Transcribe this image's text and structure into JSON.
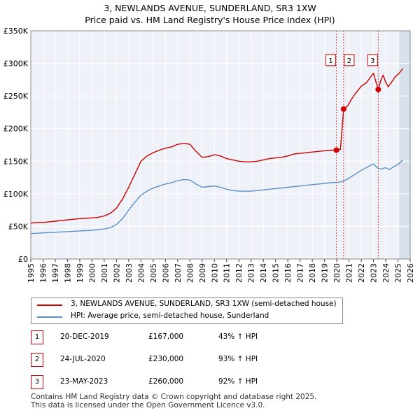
{
  "title": "3, NEWLANDS AVENUE, SUNDERLAND, SR3 1XW",
  "subtitle": "Price paid vs. HM Land Registry's House Price Index (HPI)",
  "legend": {
    "property": "3, NEWLANDS AVENUE, SUNDERLAND, SR3 1XW (semi-detached house)",
    "hpi": "HPI: Average price, semi-detached house, Sunderland"
  },
  "sales": [
    {
      "num": "1",
      "date": "20-DEC-2019",
      "price": "£167,000",
      "hpi": "43% ↑ HPI"
    },
    {
      "num": "2",
      "date": "24-JUL-2020",
      "price": "£230,000",
      "hpi": "93% ↑ HPI"
    },
    {
      "num": "3",
      "date": "23-MAY-2023",
      "price": "£260,000",
      "hpi": "92% ↑ HPI"
    }
  ],
  "footer": {
    "line1": "Contains HM Land Registry data © Crown copyright and database right 2025.",
    "line2": "This data is licensed under the Open Government Licence v3.0."
  },
  "colors": {
    "property": "#cc0000",
    "hpi": "#5b8ec9",
    "grid": "#dde3ec",
    "plot_bg": "#eef2f8",
    "future_shade": "#d8e0ec"
  },
  "chart_data": {
    "type": "line",
    "title": "3, NEWLANDS AVENUE, SUNDERLAND, SR3 1XW",
    "subtitle": "Price paid vs. HM Land Registry's House Price Index (HPI)",
    "xlim": [
      1995,
      2026
    ],
    "ylim": [
      0,
      350000
    ],
    "x_ticks": [
      1995,
      1996,
      1997,
      1998,
      1999,
      2000,
      2001,
      2002,
      2003,
      2004,
      2005,
      2006,
      2007,
      2008,
      2009,
      2010,
      2011,
      2012,
      2013,
      2014,
      2015,
      2016,
      2017,
      2018,
      2019,
      2020,
      2021,
      2022,
      2023,
      2024,
      2025,
      2026
    ],
    "y_ticks": [
      0,
      50000,
      100000,
      150000,
      200000,
      250000,
      300000,
      350000
    ],
    "y_tick_labels": [
      "£0",
      "£50K",
      "£100K",
      "£150K",
      "£200K",
      "£250K",
      "£300K",
      "£350K"
    ],
    "future_shade_from": 2025.1,
    "series": [
      {
        "name": "3, NEWLANDS AVENUE, SUNDERLAND, SR3 1XW (semi-detached house)",
        "x": [
          1995.0,
          1995.5,
          1996.0,
          1996.5,
          1997.0,
          1997.5,
          1998.0,
          1998.5,
          1999.0,
          1999.5,
          2000.0,
          2000.5,
          2001.0,
          2001.5,
          2002.0,
          2002.5,
          2003.0,
          2003.5,
          2004.0,
          2004.5,
          2005.0,
          2005.5,
          2006.0,
          2006.5,
          2007.0,
          2007.5,
          2008.0,
          2008.5,
          2009.0,
          2009.5,
          2010.0,
          2010.5,
          2011.0,
          2011.5,
          2012.0,
          2012.5,
          2013.0,
          2013.5,
          2014.0,
          2014.5,
          2015.0,
          2015.5,
          2016.0,
          2016.5,
          2017.0,
          2017.5,
          2018.0,
          2018.5,
          2019.0,
          2019.5,
          2019.97,
          2020.3,
          2020.56,
          2020.9,
          2021.3,
          2021.7,
          2022.0,
          2022.4,
          2022.8,
          2023.0,
          2023.2,
          2023.39,
          2023.6,
          2023.8,
          2024.0,
          2024.2,
          2024.5,
          2024.8,
          2025.1,
          2025.4
        ],
        "values": [
          55000,
          56000,
          56000,
          57000,
          58000,
          59000,
          60000,
          61000,
          62000,
          62500,
          63000,
          64000,
          66000,
          70000,
          78000,
          92000,
          110000,
          130000,
          150000,
          158000,
          163000,
          167000,
          170000,
          172000,
          176000,
          177000,
          176000,
          165000,
          156000,
          157000,
          160000,
          158000,
          154000,
          152000,
          150000,
          149000,
          149000,
          150000,
          152000,
          154000,
          155000,
          156000,
          158000,
          161000,
          162000,
          163000,
          164000,
          165000,
          166000,
          167000,
          167000,
          168000,
          230000,
          235000,
          248000,
          258000,
          265000,
          270000,
          280000,
          285000,
          272000,
          260000,
          274000,
          282000,
          271000,
          264000,
          272000,
          280000,
          285000,
          292000
        ],
        "color": "#cc0000"
      },
      {
        "name": "HPI: Average price, semi-detached house, Sunderland",
        "x": [
          1995.0,
          1995.5,
          1996.0,
          1996.5,
          1997.0,
          1997.5,
          1998.0,
          1998.5,
          1999.0,
          1999.5,
          2000.0,
          2000.5,
          2001.0,
          2001.5,
          2002.0,
          2002.5,
          2003.0,
          2003.5,
          2004.0,
          2004.5,
          2005.0,
          2005.5,
          2006.0,
          2006.5,
          2007.0,
          2007.5,
          2008.0,
          2008.5,
          2009.0,
          2009.5,
          2010.0,
          2010.5,
          2011.0,
          2011.5,
          2012.0,
          2012.5,
          2013.0,
          2013.5,
          2014.0,
          2014.5,
          2015.0,
          2015.5,
          2016.0,
          2016.5,
          2017.0,
          2017.5,
          2018.0,
          2018.5,
          2019.0,
          2019.5,
          2020.0,
          2020.5,
          2021.0,
          2021.5,
          2022.0,
          2022.5,
          2023.0,
          2023.3,
          2023.6,
          2024.0,
          2024.3,
          2024.6,
          2025.0,
          2025.4
        ],
        "values": [
          39000,
          39500,
          40000,
          40500,
          41000,
          41500,
          42000,
          42500,
          43000,
          43500,
          44000,
          45000,
          46000,
          48000,
          53000,
          62000,
          75000,
          87000,
          98000,
          104000,
          109000,
          112000,
          115000,
          117000,
          120000,
          122000,
          121000,
          115000,
          110000,
          111000,
          112000,
          110000,
          107000,
          105000,
          104000,
          104000,
          104000,
          105000,
          106000,
          107000,
          108000,
          109000,
          110000,
          111000,
          112000,
          113000,
          114000,
          115000,
          116000,
          117000,
          117500,
          119000,
          124000,
          130000,
          136000,
          141000,
          146000,
          140000,
          138000,
          140000,
          137000,
          141000,
          145000,
          152000
        ],
        "color": "#5b8ec9"
      }
    ],
    "sale_points": [
      {
        "label": "1",
        "x": 2019.97,
        "value": 167000
      },
      {
        "label": "2",
        "x": 2020.56,
        "value": 230000
      },
      {
        "label": "3",
        "x": 2023.39,
        "value": 260000
      }
    ],
    "marker_label_value": 304000
  }
}
